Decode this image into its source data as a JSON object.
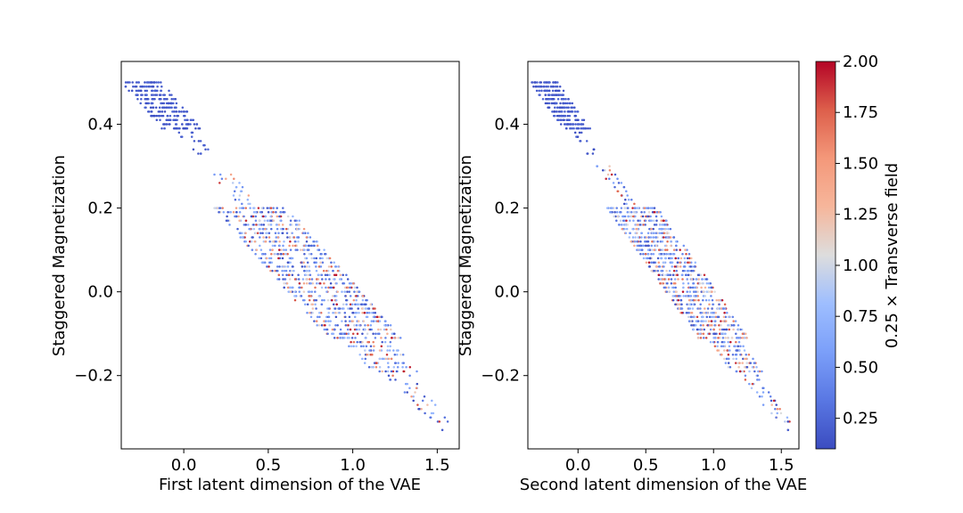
{
  "chart_data": [
    {
      "type": "scatter",
      "xlabel": "First latent dimension of the VAE",
      "ylabel": "Staggered Magnetization",
      "xlim": [
        -0.37,
        1.63
      ],
      "ylim": [
        -0.375,
        0.55
      ],
      "xticks": [
        {
          "v": 0.0,
          "label": "0.0"
        },
        {
          "v": 0.5,
          "label": "0.5"
        },
        {
          "v": 1.0,
          "label": "1.0"
        },
        {
          "v": 1.5,
          "label": "1.5"
        }
      ],
      "yticks": [
        {
          "v": 0.4,
          "label": "0.4"
        },
        {
          "v": 0.2,
          "label": "0.2"
        },
        {
          "v": 0.0,
          "label": "0.0"
        },
        {
          "v": -0.2,
          "label": "−0.2"
        }
      ],
      "band": {
        "x_at_top": -0.25,
        "y_top": 0.5,
        "x_at_bottom": 1.55,
        "y_bottom": -0.33
      },
      "outlier": {
        "x": 1.53,
        "y": -0.33
      }
    },
    {
      "type": "scatter",
      "xlabel": "Second latent dimension of the VAE",
      "ylabel": "Staggered Magnetization",
      "xlim": [
        -0.37,
        1.63
      ],
      "ylim": [
        -0.375,
        0.55
      ],
      "xticks": [
        {
          "v": 0.0,
          "label": "0.0"
        },
        {
          "v": 0.5,
          "label": "0.5"
        },
        {
          "v": 1.0,
          "label": "1.0"
        },
        {
          "v": 1.5,
          "label": "1.5"
        }
      ],
      "yticks": [
        {
          "v": 0.4,
          "label": "0.4"
        },
        {
          "v": 0.2,
          "label": "0.2"
        },
        {
          "v": 0.0,
          "label": "0.0"
        },
        {
          "v": -0.2,
          "label": "−0.2"
        }
      ],
      "band": {
        "x_at_top": -0.25,
        "y_top": 0.5,
        "x_at_bottom": 1.55,
        "y_bottom": -0.33
      },
      "outlier": {
        "x": 1.55,
        "y": -0.33
      }
    }
  ],
  "colorbar": {
    "label": "0.25 × Transverse field",
    "min": 0.1,
    "max": 2.0,
    "ticks": [
      {
        "v": 2.0,
        "label": "2.00"
      },
      {
        "v": 1.75,
        "label": "1.75"
      },
      {
        "v": 1.5,
        "label": "1.50"
      },
      {
        "v": 1.25,
        "label": "1.25"
      },
      {
        "v": 1.0,
        "label": "1.00"
      },
      {
        "v": 0.75,
        "label": "0.75"
      },
      {
        "v": 0.5,
        "label": "0.50"
      },
      {
        "v": 0.25,
        "label": "0.25"
      }
    ],
    "colormap": "coolwarm",
    "colors": {
      "low": "#3b4cc0",
      "mid": "#dddddd",
      "high": "#b40426"
    }
  }
}
